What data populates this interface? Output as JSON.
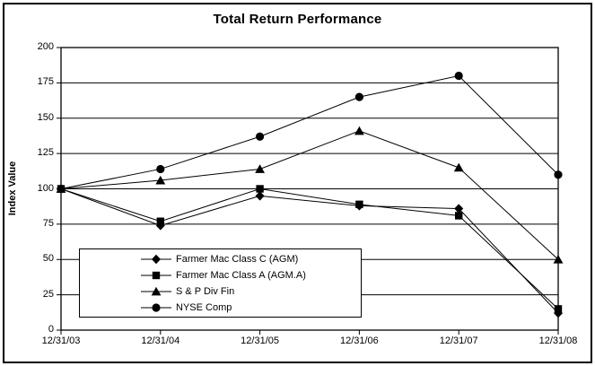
{
  "chart_data": {
    "type": "line",
    "title": "Total Return Performance",
    "xlabel": "",
    "ylabel": "Index Value",
    "ylim": [
      0,
      200
    ],
    "y_ticks": [
      0,
      25,
      50,
      75,
      100,
      125,
      150,
      175,
      200
    ],
    "grid": true,
    "legend_position": "inside-bottom-left",
    "categories": [
      "12/31/03",
      "12/31/04",
      "12/31/05",
      "12/31/06",
      "12/31/07",
      "12/31/08"
    ],
    "series": [
      {
        "name": "Farmer Mac Class C (AGM)",
        "marker": "diamond",
        "color": "#000000",
        "values": [
          100,
          74,
          95,
          88,
          86,
          12
        ]
      },
      {
        "name": "Farmer Mac Class A (AGM.A)",
        "marker": "square",
        "color": "#000000",
        "values": [
          100,
          77,
          100,
          89,
          81,
          15
        ]
      },
      {
        "name": "S & P Div Fin",
        "marker": "triangle",
        "color": "#000000",
        "values": [
          100,
          106,
          114,
          141,
          115,
          50
        ]
      },
      {
        "name": "NYSE Comp",
        "marker": "circle",
        "color": "#000000",
        "values": [
          100,
          114,
          137,
          165,
          180,
          110
        ]
      }
    ]
  },
  "colors": {
    "foreground": "#000000",
    "background": "#ffffff",
    "frame_border": "#000000"
  }
}
